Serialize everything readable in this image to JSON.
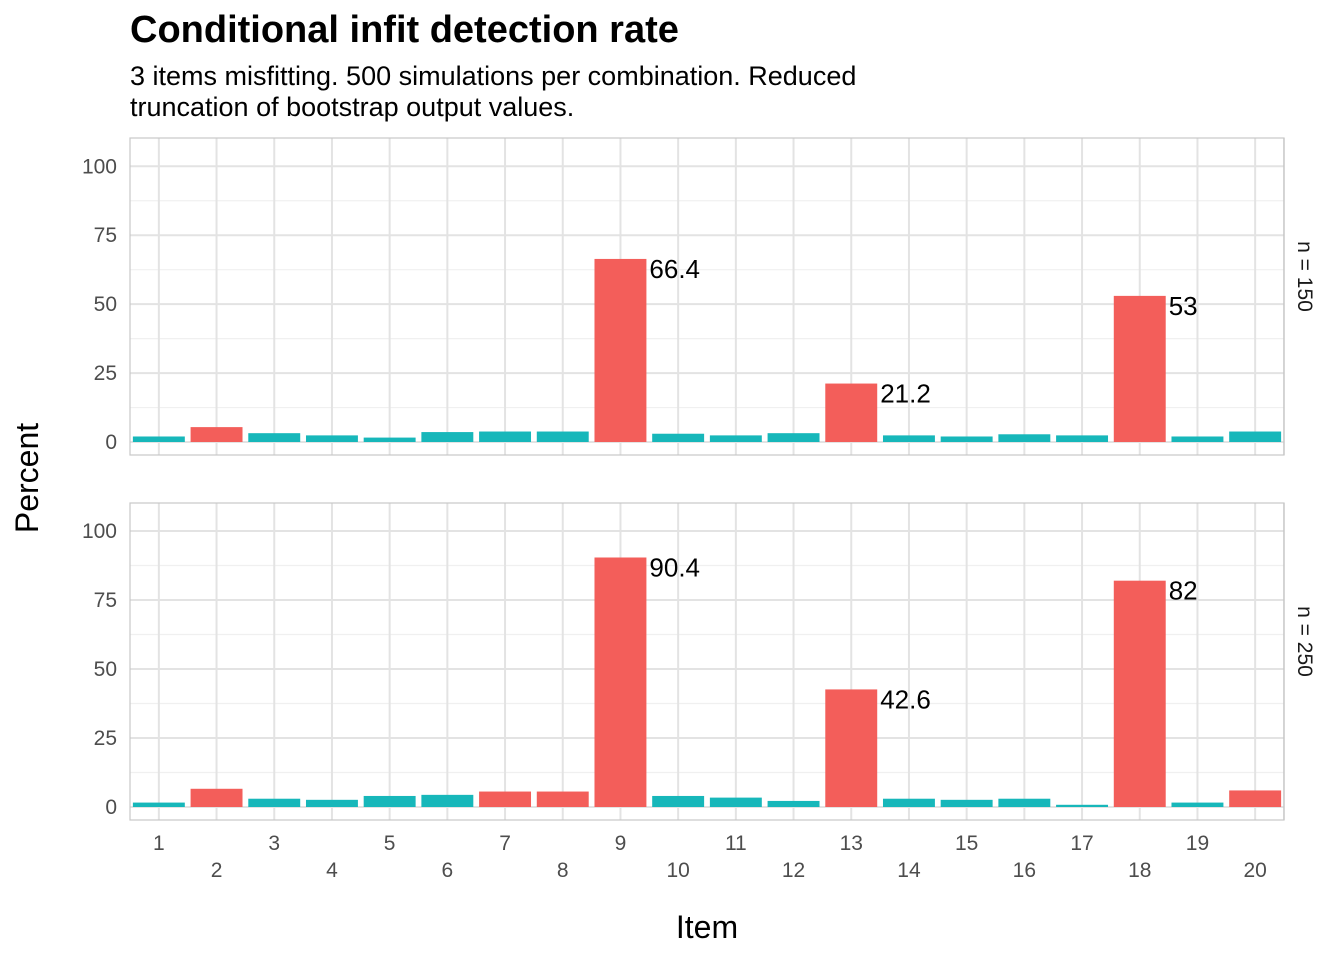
{
  "chart_data": {
    "type": "bar",
    "title": "Conditional infit detection rate",
    "subtitle_lines": [
      "3 items misfitting. 500 simulations per combination. Reduced",
      "truncation of bootstrap output values."
    ],
    "xlabel": "Item",
    "ylabel": "Percent",
    "ylim": [
      0,
      100
    ],
    "yticks": [
      0,
      25,
      50,
      75,
      100
    ],
    "categories": [
      "1",
      "2",
      "3",
      "4",
      "5",
      "6",
      "7",
      "8",
      "9",
      "10",
      "11",
      "12",
      "13",
      "14",
      "15",
      "16",
      "17",
      "18",
      "19",
      "20"
    ],
    "grid": true,
    "legend": "none",
    "colors": {
      "misfit": "#F35E5A",
      "fit": "#17B7BA"
    },
    "panels": [
      {
        "label": "n = 150",
        "values": [
          2.0,
          5.4,
          3.2,
          2.4,
          1.6,
          3.6,
          3.8,
          3.8,
          66.4,
          3.0,
          2.4,
          3.2,
          21.2,
          2.4,
          2.0,
          2.8,
          2.4,
          53,
          2.0,
          3.8
        ],
        "highlight": [
          false,
          true,
          false,
          false,
          false,
          false,
          false,
          false,
          true,
          false,
          false,
          false,
          true,
          false,
          false,
          false,
          false,
          true,
          false,
          false
        ],
        "data_labels": {
          "8": "66.4",
          "12": "21.2",
          "17": "53"
        }
      },
      {
        "label": "n = 250",
        "values": [
          1.6,
          6.6,
          3.0,
          2.6,
          4.0,
          4.4,
          5.6,
          5.6,
          90.4,
          4.0,
          3.4,
          2.2,
          42.6,
          3.0,
          2.6,
          3.0,
          0.8,
          82,
          1.6,
          6.0
        ],
        "highlight": [
          false,
          true,
          false,
          false,
          false,
          false,
          true,
          true,
          true,
          false,
          false,
          false,
          true,
          false,
          false,
          false,
          false,
          true,
          false,
          true
        ],
        "data_labels": {
          "8": "90.4",
          "12": "42.6",
          "17": "82"
        }
      }
    ]
  }
}
